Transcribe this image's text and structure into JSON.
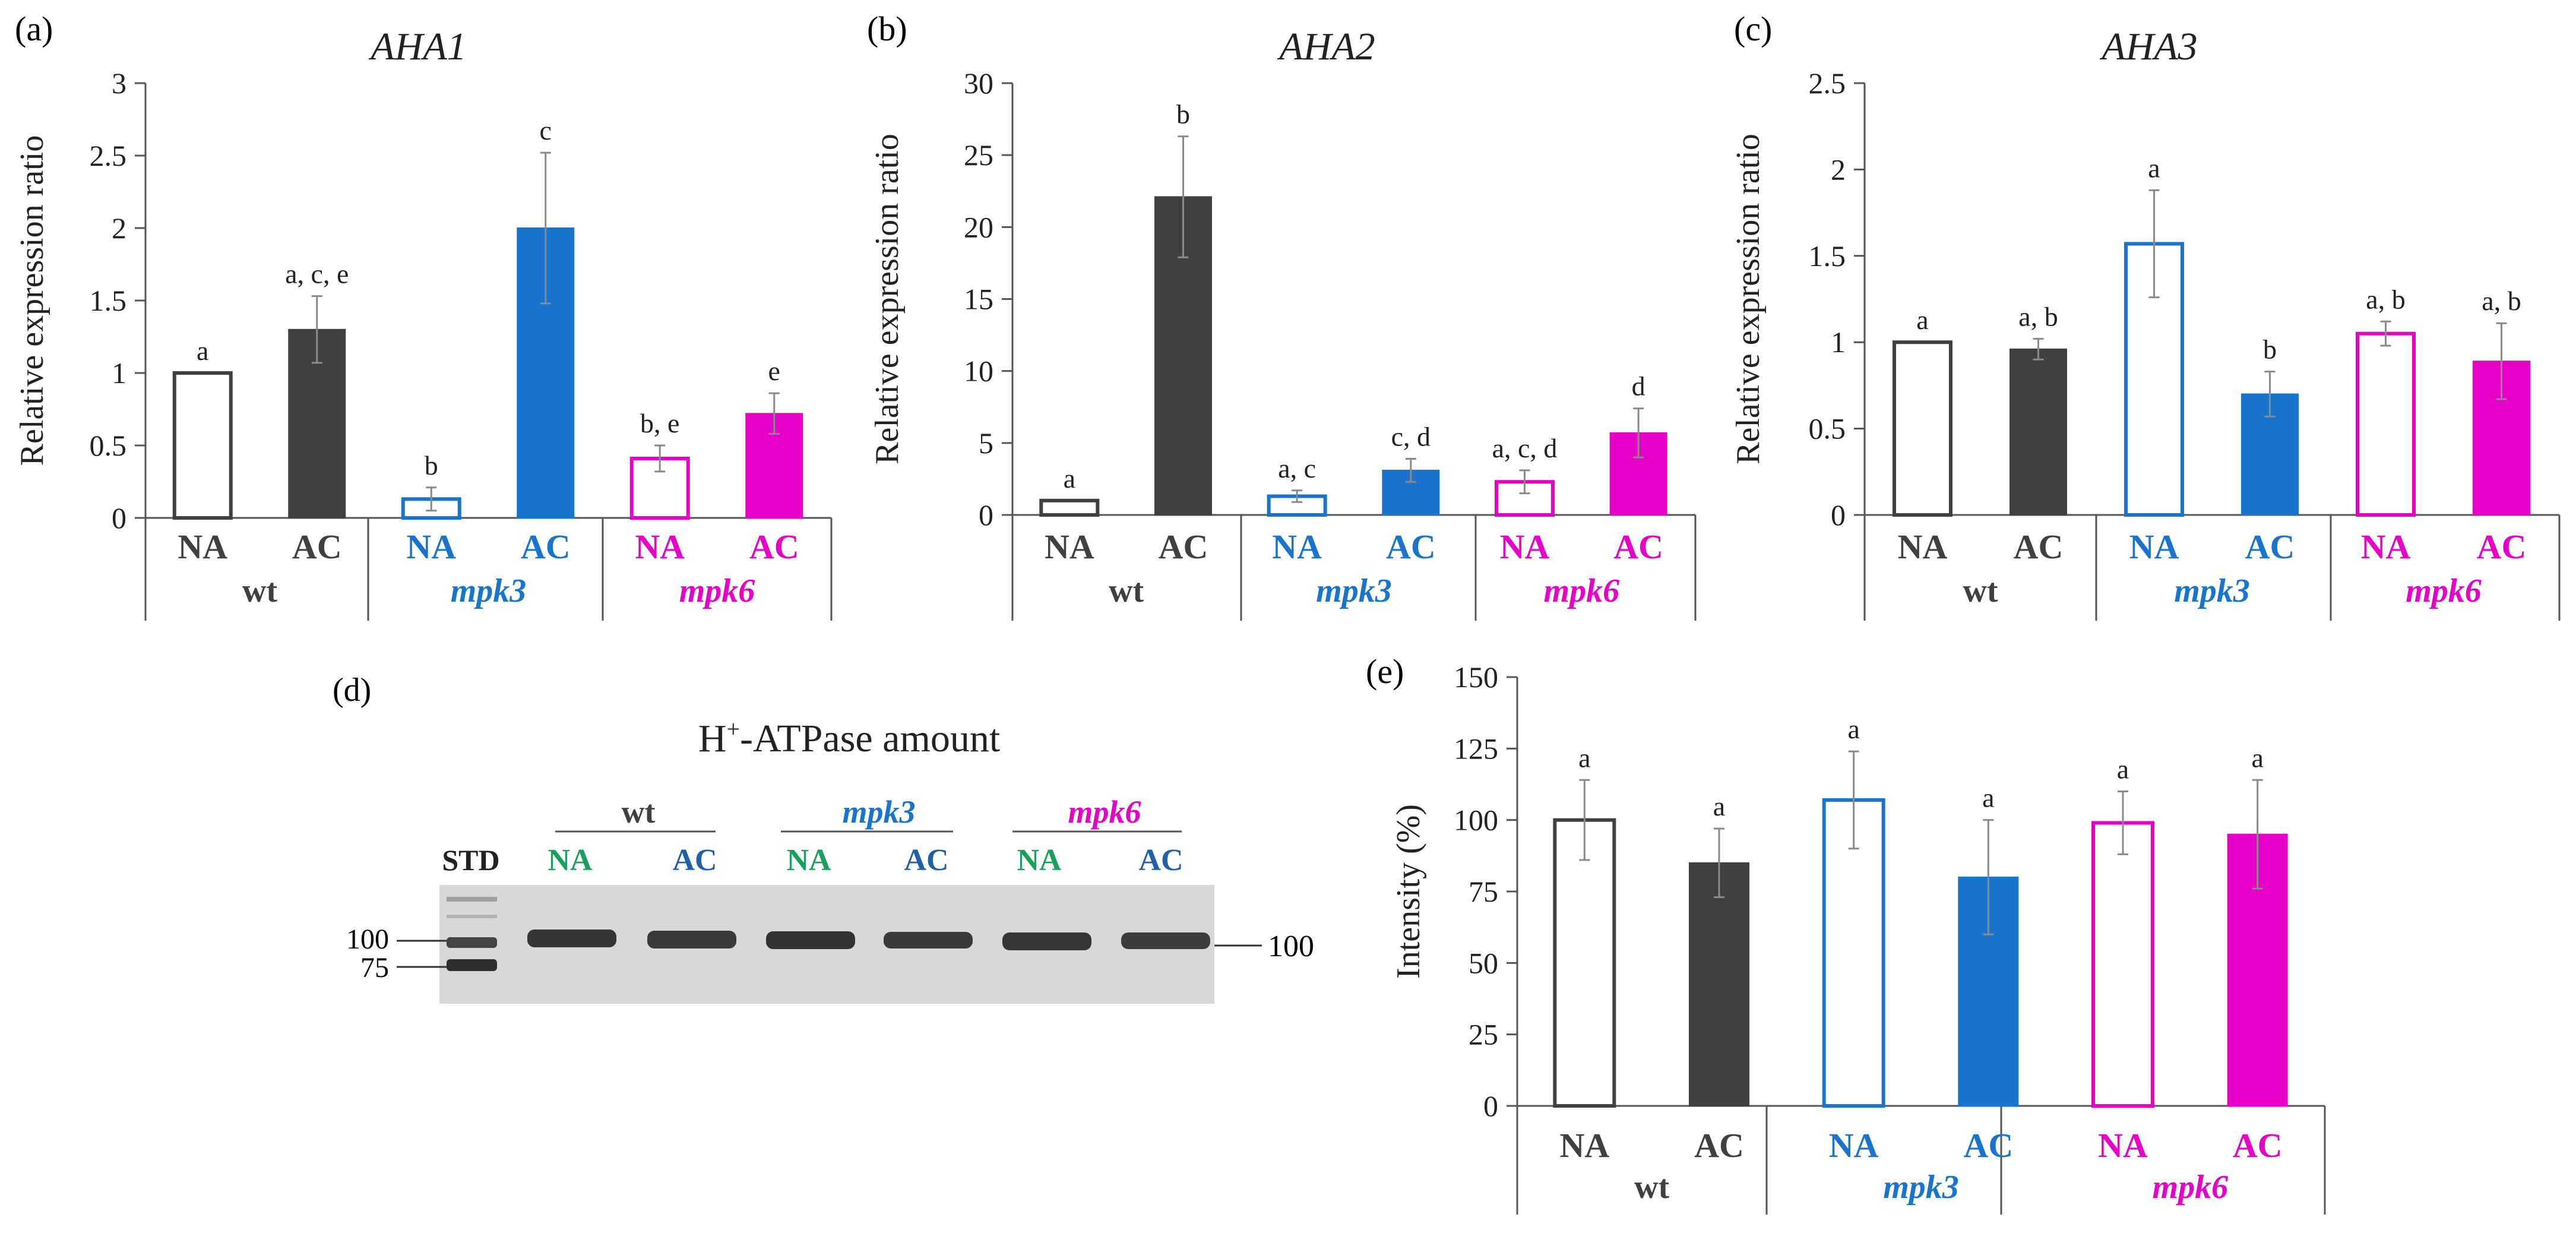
{
  "colors": {
    "wt": "#404040",
    "mpk3": "#1874cd",
    "mpk6": "#e600c8",
    "blot_na": "#1aa05a",
    "blot_ac": "#2060a8",
    "axis": "#555555",
    "errorbar": "#8a8a8a"
  },
  "chart_data": [
    {
      "panel": "(a)",
      "type": "bar",
      "title": "AHA1",
      "ylabel": "Relative expression ratio",
      "ylim": [
        0,
        3
      ],
      "yticks": [
        "0",
        "0.5",
        "1",
        "1.5",
        "2",
        "2.5",
        "3"
      ],
      "categories": [
        "NA",
        "AC",
        "NA",
        "AC",
        "NA",
        "AC"
      ],
      "groups": [
        "wt",
        "mpk3",
        "mpk6"
      ],
      "values": [
        1.0,
        1.3,
        0.13,
        2.0,
        0.41,
        0.72
      ],
      "errors": [
        0.0,
        0.23,
        0.08,
        0.52,
        0.09,
        0.14
      ],
      "letters": [
        "a",
        "a, c, e",
        "b",
        "c",
        "b, e",
        "e"
      ]
    },
    {
      "panel": "(b)",
      "type": "bar",
      "title": "AHA2",
      "ylabel": "Relative expression ratio",
      "ylim": [
        0,
        30
      ],
      "yticks": [
        "0",
        "5",
        "10",
        "15",
        "20",
        "25",
        "30"
      ],
      "categories": [
        "NA",
        "AC",
        "NA",
        "AC",
        "NA",
        "AC"
      ],
      "groups": [
        "wt",
        "mpk3",
        "mpk6"
      ],
      "values": [
        1.0,
        22.1,
        1.3,
        3.1,
        2.3,
        5.7
      ],
      "errors": [
        0.0,
        4.2,
        0.4,
        0.8,
        0.8,
        1.7
      ],
      "letters": [
        "a",
        "b",
        "a, c",
        "c, d",
        "a, c, d",
        "d"
      ]
    },
    {
      "panel": "(c)",
      "type": "bar",
      "title": "AHA3",
      "ylabel": "Relative expression ratio",
      "ylim": [
        0,
        2.5
      ],
      "yticks": [
        "0",
        "0.5",
        "1",
        "1.5",
        "2",
        "2.5"
      ],
      "categories": [
        "NA",
        "AC",
        "NA",
        "AC",
        "NA",
        "AC"
      ],
      "groups": [
        "wt",
        "mpk3",
        "mpk6"
      ],
      "values": [
        1.0,
        0.96,
        1.57,
        0.7,
        1.05,
        0.89
      ],
      "errors": [
        0.0,
        0.06,
        0.31,
        0.13,
        0.07,
        0.22
      ],
      "letters": [
        "a",
        "a, b",
        "a",
        "b",
        "a, b",
        "a, b"
      ]
    },
    {
      "panel": "(e)",
      "type": "bar",
      "title": "",
      "ylabel": "Intensity (%)",
      "ylim": [
        0,
        150
      ],
      "yticks": [
        "0",
        "25",
        "50",
        "75",
        "100",
        "125",
        "150"
      ],
      "categories": [
        "NA",
        "AC",
        "NA",
        "AC",
        "NA",
        "AC"
      ],
      "groups": [
        "wt",
        "mpk3",
        "mpk6"
      ],
      "values": [
        100,
        85,
        107,
        80,
        99,
        95
      ],
      "errors": [
        14,
        12,
        17,
        20,
        11,
        19
      ],
      "letters": [
        "a",
        "a",
        "a",
        "a",
        "a",
        "a"
      ]
    }
  ],
  "blot": {
    "panel": "(d)",
    "title_main": "H",
    "title_sup": "+",
    "title_rest": "-ATPase amount",
    "std_label": "STD",
    "groups": [
      "wt",
      "mpk3",
      "mpk6"
    ],
    "lane_labels": [
      "NA",
      "AC",
      "NA",
      "AC",
      "NA",
      "AC"
    ],
    "marker_100": "100",
    "marker_75": "75",
    "right_marker": "100"
  }
}
